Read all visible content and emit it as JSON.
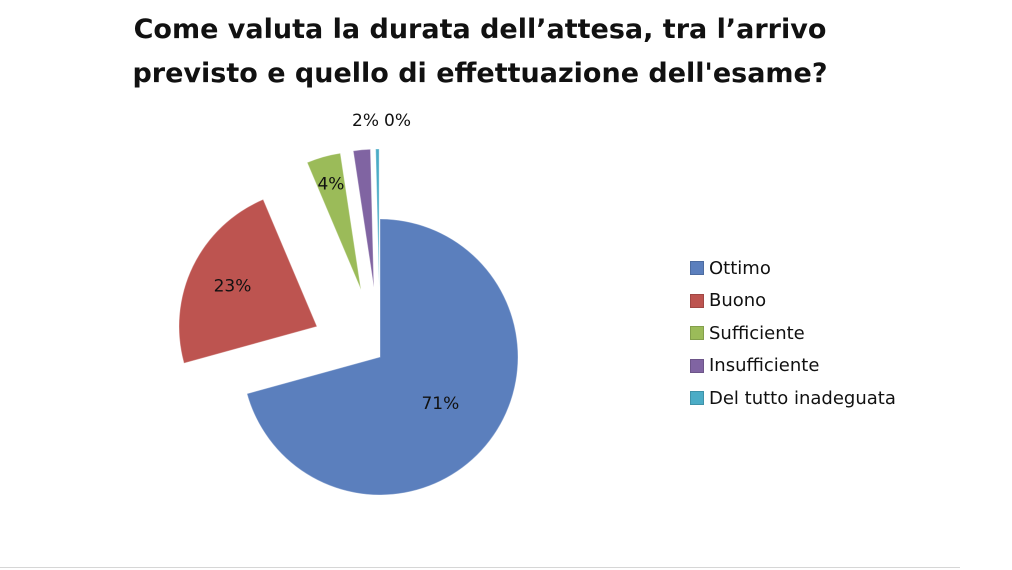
{
  "chart_data": {
    "type": "pie",
    "title_line1": "Come valuta la durata dell’attesa, tra l’arrivo",
    "title_line2": "previsto e quello di effettuazione dell'esame?",
    "categories": [
      "Ottimo",
      "Buono",
      "Sufficiente",
      "Insufficiente",
      "Del tutto inadeguata"
    ],
    "values": [
      71,
      23,
      4,
      2,
      0.4
    ],
    "labels": [
      "71%",
      "23%",
      "4%",
      "2%",
      "0%"
    ],
    "colors": [
      "#5b7fbd",
      "#bd5450",
      "#9bbb59",
      "#8064a2",
      "#4bacc6"
    ],
    "exploded": true,
    "legend_position": "right"
  }
}
